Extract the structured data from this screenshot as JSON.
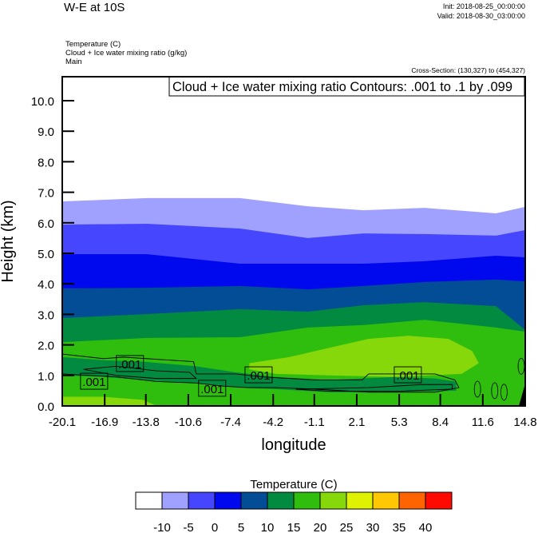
{
  "header": {
    "title": "W-E at 10S",
    "init": "Init: 2018-08-25_00:00:00",
    "valid": "Valid: 2018-08-30_03:00:00",
    "fields": [
      "Temperature   (C)",
      "Cloud + Ice water mixing ratio   (g/kg)",
      "Main"
    ],
    "cross_section": "Cross-Section: (130,327) to (454,327)",
    "info_box": "Cloud + Ice water mixing ratio Contours: .001 to .1 by .099"
  },
  "chart_data": {
    "type": "filled-contour cross-section",
    "xlabel": "longitude",
    "ylabel": "Height (km)",
    "xlim": [
      -20.1,
      14.8
    ],
    "ylim": [
      0,
      10.8
    ],
    "xticks": [
      "-20.1",
      "-16.9",
      "-13.8",
      "-10.6",
      "-7.4",
      "-4.2",
      "-1.1",
      "2.1",
      "5.3",
      "8.4",
      "11.6",
      "14.8"
    ],
    "xtick_values": [
      -20.1,
      -16.9,
      -13.8,
      -10.6,
      -7.4,
      -4.2,
      -1.1,
      2.1,
      5.3,
      8.4,
      11.6,
      14.8
    ],
    "yticks": [
      "0.0",
      "1.0",
      "2.0",
      "3.0",
      "4.0",
      "5.0",
      "6.0",
      "7.0",
      "8.0",
      "9.0",
      "10.0"
    ],
    "ytick_values": [
      0,
      1,
      2,
      3,
      4,
      5,
      6,
      7,
      8,
      9,
      10
    ],
    "isotherm_longitudes": [
      -20.1,
      -13.7,
      -6.7,
      -1.6,
      2.6,
      7.2,
      12.6,
      14.8
    ],
    "isotherms": [
      {
        "temp": -10,
        "heights_km": [
          6.7,
          6.81,
          6.81,
          6.54,
          6.41,
          6.49,
          6.31,
          6.52
        ]
      },
      {
        "temp": -5,
        "heights_km": [
          5.94,
          5.97,
          5.81,
          5.5,
          5.65,
          5.63,
          5.58,
          5.76
        ]
      },
      {
        "temp": 0,
        "heights_km": [
          4.97,
          4.97,
          4.66,
          4.66,
          4.66,
          4.74,
          4.92,
          4.87
        ]
      },
      {
        "temp": 5,
        "heights_km": [
          3.85,
          3.87,
          3.93,
          3.82,
          3.93,
          4.06,
          4.14,
          4.08
        ]
      },
      {
        "temp": 10,
        "heights_km": [
          2.88,
          3.01,
          3.17,
          3.09,
          3.3,
          3.4,
          3.27,
          2.49
        ]
      },
      {
        "temp": 15,
        "heights_km": [
          2.09,
          2.23,
          2.25,
          2.57,
          2.65,
          2.82,
          2.57,
          2.43
        ]
      }
    ],
    "warm_region_20_25": [
      [
        -6,
        1.4
      ],
      [
        -3,
        1.6
      ],
      [
        0,
        1.9
      ],
      [
        3,
        2.2
      ],
      [
        6,
        2.3
      ],
      [
        9,
        2.2
      ],
      [
        10.8,
        1.8
      ],
      [
        11.3,
        1.4
      ],
      [
        10,
        1.05
      ],
      [
        5,
        0.95
      ],
      [
        0,
        1.0
      ],
      [
        -4,
        1.05
      ],
      [
        -6,
        1.2
      ]
    ],
    "warm_surface_20_25": [
      [
        -20.1,
        0
      ],
      [
        -20.1,
        0.3
      ],
      [
        -17,
        0.3
      ],
      [
        -14,
        0.2
      ],
      [
        -13,
        0
      ],
      [
        -20.1,
        0
      ]
    ],
    "cool_band_10_15": [
      [
        -20.1,
        1.6
      ],
      [
        -17,
        1.5
      ],
      [
        -14,
        1.45
      ],
      [
        -10,
        1.3
      ],
      [
        -7,
        1.1
      ],
      [
        -4,
        0.95
      ],
      [
        0,
        0.85
      ],
      [
        5,
        0.95
      ],
      [
        8,
        0.9
      ],
      [
        9.6,
        0.8
      ],
      [
        9.6,
        0.5
      ],
      [
        5,
        0.45
      ],
      [
        0,
        0.45
      ],
      [
        -4,
        0.55
      ],
      [
        -7,
        0.6
      ],
      [
        -10,
        0.75
      ],
      [
        -14,
        0.85
      ],
      [
        -17,
        0.95
      ],
      [
        -20.1,
        1.0
      ]
    ],
    "cloud_contour_level": ".001",
    "cloud_contours": [
      [
        [
          -20.1,
          1.7
        ],
        [
          -17,
          1.55
        ],
        [
          -15.5,
          1.6
        ],
        [
          -12,
          1.5
        ],
        [
          -10.2,
          1.45
        ],
        [
          -10,
          1.05
        ],
        [
          -7,
          1.05
        ],
        [
          -5,
          0.95
        ],
        [
          -1,
          0.85
        ],
        [
          2.5,
          0.85
        ],
        [
          3,
          1.05
        ],
        [
          8,
          1.05
        ],
        [
          9.5,
          0.85
        ],
        [
          9.8,
          0.6
        ],
        [
          8,
          0.45
        ],
        [
          3,
          0.45
        ],
        [
          -1,
          0.55
        ],
        [
          -4,
          0.6
        ],
        [
          -6,
          0.6
        ],
        [
          -8,
          0.65
        ],
        [
          -10,
          0.75
        ],
        [
          -13,
          0.8
        ],
        [
          -16,
          0.95
        ],
        [
          -18,
          1.0
        ],
        [
          -20.1,
          1.05
        ]
      ],
      [
        [
          -18.5,
          1.2
        ],
        [
          -16,
          1.3
        ],
        [
          -13,
          1.15
        ],
        [
          -10.5,
          1.1
        ],
        [
          -10,
          0.9
        ],
        [
          -13,
          0.9
        ],
        [
          -16,
          1.0
        ],
        [
          -18.5,
          1.2
        ]
      ],
      [
        [
          -2.5,
          0.55
        ],
        [
          3,
          0.6
        ],
        [
          7,
          0.7
        ],
        [
          9.3,
          0.7
        ],
        [
          9.3,
          0.55
        ],
        [
          5,
          0.48
        ],
        [
          0,
          0.48
        ],
        [
          -2.5,
          0.55
        ]
      ]
    ],
    "contour_labels": [
      {
        "text": ".001",
        "lon": -17.7,
        "h": 0.81
      },
      {
        "text": ".001",
        "lon": -15.0,
        "h": 1.39
      },
      {
        "text": ".001",
        "lon": -8.8,
        "h": 0.58
      },
      {
        "text": ".001",
        "lon": -5.3,
        "h": 1.02
      },
      {
        "text": ".001",
        "lon": 5.95,
        "h": 1.02
      }
    ],
    "colorbar": {
      "title": "Temperature  (C)",
      "labels": [
        "-10",
        "-5",
        "0",
        "5",
        "10",
        "15",
        "20",
        "25",
        "30",
        "35",
        "40"
      ],
      "colors": [
        "#ffffff",
        "#a0a0ff",
        "#4646ff",
        "#0008ee",
        "#034c96",
        "#028a40",
        "#2fbd0e",
        "#86d80a",
        "#dff202",
        "#ffc802",
        "#ff6400",
        "#ff0a00"
      ]
    },
    "terrain_color": "#000000"
  }
}
